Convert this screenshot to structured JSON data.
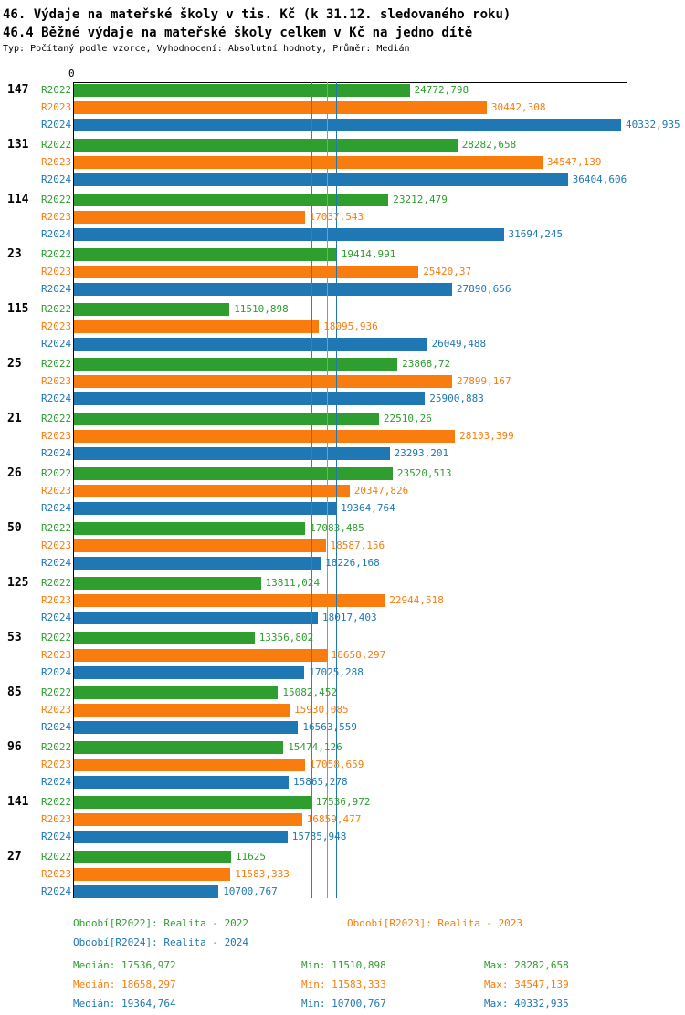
{
  "header": {
    "title1": "46. Výdaje na mateřské školy v tis. Kč (k 31.12. sledovaného roku)",
    "title2": "46.4 Běžné výdaje na mateřské školy celkem v Kč na jedno dítě",
    "subtitle": "Typ: Počítaný podle vzorce, Vyhodnocení: Absolutní hodnoty, Průměr: Medián"
  },
  "colors": {
    "r2022": "#2e9e2e",
    "r2023": "#f97d0e",
    "r2024": "#1f77b4",
    "axis": "#000000"
  },
  "chart_data": {
    "type": "bar",
    "orientation": "horizontal",
    "x_axis": {
      "min": 0,
      "min_label": "0",
      "max": 40332.935
    },
    "series_labels": [
      "R2022",
      "R2023",
      "R2024"
    ],
    "medians": [
      {
        "series": "R2022",
        "value": 17536.972
      },
      {
        "series": "R2023",
        "value": 18658.297
      },
      {
        "series": "R2024",
        "value": 19364.764
      }
    ],
    "groups": [
      {
        "id": "147",
        "bars": [
          {
            "series": "R2022",
            "value": 24772.798,
            "text": "24772,798"
          },
          {
            "series": "R2023",
            "value": 30442.308,
            "text": "30442,308"
          },
          {
            "series": "R2024",
            "value": 40332.935,
            "text": "40332,935"
          }
        ]
      },
      {
        "id": "131",
        "bars": [
          {
            "series": "R2022",
            "value": 28282.658,
            "text": "28282,658"
          },
          {
            "series": "R2023",
            "value": 34547.139,
            "text": "34547,139"
          },
          {
            "series": "R2024",
            "value": 36404.606,
            "text": "36404,606"
          }
        ]
      },
      {
        "id": "114",
        "bars": [
          {
            "series": "R2022",
            "value": 23212.479,
            "text": "23212,479"
          },
          {
            "series": "R2023",
            "value": 17037.543,
            "text": "17037,543"
          },
          {
            "series": "R2024",
            "value": 31694.245,
            "text": "31694,245"
          }
        ]
      },
      {
        "id": "23",
        "bars": [
          {
            "series": "R2022",
            "value": 19414.991,
            "text": "19414,991"
          },
          {
            "series": "R2023",
            "value": 25420.37,
            "text": "25420,37"
          },
          {
            "series": "R2024",
            "value": 27890.656,
            "text": "27890,656"
          }
        ]
      },
      {
        "id": "115",
        "bars": [
          {
            "series": "R2022",
            "value": 11510.898,
            "text": "11510,898"
          },
          {
            "series": "R2023",
            "value": 18095.936,
            "text": "18095,936"
          },
          {
            "series": "R2024",
            "value": 26049.488,
            "text": "26049,488"
          }
        ]
      },
      {
        "id": "25",
        "bars": [
          {
            "series": "R2022",
            "value": 23868.72,
            "text": "23868,72"
          },
          {
            "series": "R2023",
            "value": 27899.167,
            "text": "27899,167"
          },
          {
            "series": "R2024",
            "value": 25900.883,
            "text": "25900,883"
          }
        ]
      },
      {
        "id": "21",
        "bars": [
          {
            "series": "R2022",
            "value": 22510.26,
            "text": "22510,26"
          },
          {
            "series": "R2023",
            "value": 28103.399,
            "text": "28103,399"
          },
          {
            "series": "R2024",
            "value": 23293.201,
            "text": "23293,201"
          }
        ]
      },
      {
        "id": "26",
        "bars": [
          {
            "series": "R2022",
            "value": 23520.513,
            "text": "23520,513"
          },
          {
            "series": "R2023",
            "value": 20347.826,
            "text": "20347,826"
          },
          {
            "series": "R2024",
            "value": 19364.764,
            "text": "19364,764"
          }
        ]
      },
      {
        "id": "50",
        "bars": [
          {
            "series": "R2022",
            "value": 17083.485,
            "text": "17083,485"
          },
          {
            "series": "R2023",
            "value": 18587.156,
            "text": "18587,156"
          },
          {
            "series": "R2024",
            "value": 18226.168,
            "text": "18226,168"
          }
        ]
      },
      {
        "id": "125",
        "bars": [
          {
            "series": "R2022",
            "value": 13811.024,
            "text": "13811,024"
          },
          {
            "series": "R2023",
            "value": 22944.518,
            "text": "22944,518"
          },
          {
            "series": "R2024",
            "value": 18017.403,
            "text": "18017,403"
          }
        ]
      },
      {
        "id": "53",
        "bars": [
          {
            "series": "R2022",
            "value": 13356.802,
            "text": "13356,802"
          },
          {
            "series": "R2023",
            "value": 18658.297,
            "text": "18658,297"
          },
          {
            "series": "R2024",
            "value": 17025.288,
            "text": "17025,288"
          }
        ]
      },
      {
        "id": "85",
        "bars": [
          {
            "series": "R2022",
            "value": 15082.452,
            "text": "15082,452"
          },
          {
            "series": "R2023",
            "value": 15930.085,
            "text": "15930,085"
          },
          {
            "series": "R2024",
            "value": 16563.559,
            "text": "16563,559"
          }
        ]
      },
      {
        "id": "96",
        "bars": [
          {
            "series": "R2022",
            "value": 15474.126,
            "text": "15474,126"
          },
          {
            "series": "R2023",
            "value": 17058.659,
            "text": "17058,659"
          },
          {
            "series": "R2024",
            "value": 15865.278,
            "text": "15865,278"
          }
        ]
      },
      {
        "id": "141",
        "bars": [
          {
            "series": "R2022",
            "value": 17536.972,
            "text": "17536,972"
          },
          {
            "series": "R2023",
            "value": 16859.477,
            "text": "16859,477"
          },
          {
            "series": "R2024",
            "value": 15785.948,
            "text": "15785,948"
          }
        ]
      },
      {
        "id": "27",
        "bars": [
          {
            "series": "R2022",
            "value": 11625,
            "text": "11625"
          },
          {
            "series": "R2023",
            "value": 11583.333,
            "text": "11583,333"
          },
          {
            "series": "R2024",
            "value": 10700.767,
            "text": "10700,767"
          }
        ]
      }
    ]
  },
  "legend": {
    "r2022": "Období[R2022]: Realita - 2022",
    "r2023": "Období[R2023]: Realita - 2023",
    "r2024": "Období[R2024]: Realita - 2024"
  },
  "stats": {
    "r2022": {
      "median": "Medián: 17536,972",
      "min": "Min: 11510,898",
      "max": "Max: 28282,658"
    },
    "r2023": {
      "median": "Medián: 18658,297",
      "min": "Min: 11583,333",
      "max": "Max: 34547,139"
    },
    "r2024": {
      "median": "Medián: 19364,764",
      "min": "Min: 10700,767",
      "max": "Max: 40332,935"
    }
  }
}
